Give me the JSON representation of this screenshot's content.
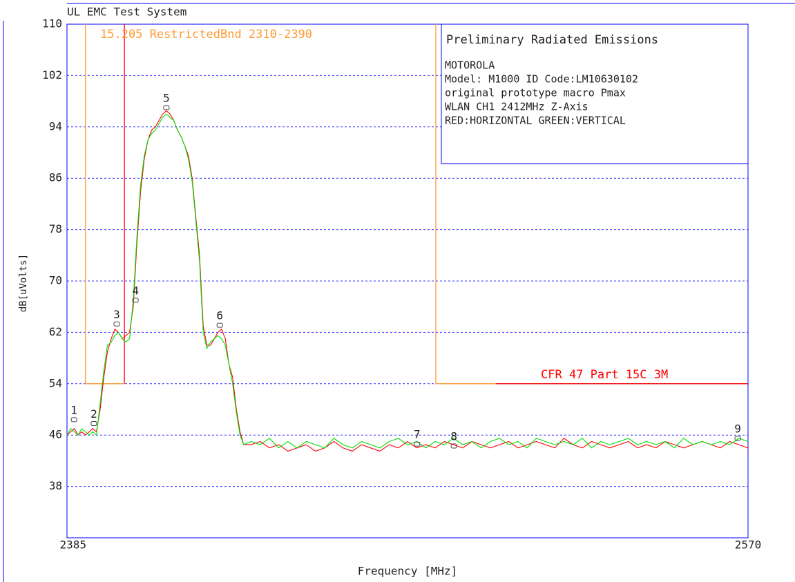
{
  "chart_data": {
    "type": "line",
    "title": "UL EMC Test System",
    "xlabel": "Frequency [MHz]",
    "ylabel": "dB[uVolts]",
    "xlim": [
      2385,
      2570
    ],
    "ylim": [
      30,
      110
    ],
    "xticks": [
      2385,
      2570
    ],
    "yticks": [
      38,
      46,
      54,
      62,
      70,
      78,
      86,
      94,
      102,
      110
    ],
    "grid": true,
    "info_box": {
      "title": "Preliminary Radiated Emissions",
      "lines": [
        "MOTOROLA",
        "Model: M1000  ID Code:LM10630102",
        "original prototype macro Pmax",
        "WLAN CH1 2412MHz Z-Axis",
        "RED:HORIZONTAL  GREEN:VERTICAL"
      ]
    },
    "annotations": [
      {
        "text": "15.205 RestrictedBnd 2310-2390",
        "color": "#ff9933"
      },
      {
        "text": "CFR 47 Part 15C 3M",
        "color": "#ff0000"
      }
    ],
    "x": [
      2385,
      2386,
      2387,
      2388,
      2389,
      2390,
      2391,
      2392,
      2393,
      2394,
      2395,
      2396,
      2397,
      2398,
      2399,
      2400,
      2401,
      2402,
      2403,
      2404,
      2405,
      2406,
      2407,
      2408,
      2409,
      2410,
      2411,
      2412,
      2413,
      2414,
      2415,
      2416,
      2417,
      2418,
      2419,
      2420,
      2421,
      2422,
      2423,
      2424,
      2425,
      2426,
      2427,
      2428,
      2429,
      2430,
      2431,
      2432,
      2433,
      2435,
      2437.5,
      2440,
      2442.5,
      2445,
      2447.5,
      2450,
      2452.5,
      2455,
      2457.5,
      2460,
      2462.5,
      2465,
      2467.5,
      2470,
      2472.5,
      2475,
      2477.5,
      2480,
      2482.5,
      2485,
      2487.5,
      2490,
      2492.5,
      2495,
      2497.5,
      2500,
      2502.5,
      2505,
      2507.5,
      2510,
      2512.5,
      2515,
      2517.5,
      2520,
      2522.5,
      2525,
      2527.5,
      2530,
      2532.5,
      2535,
      2537.5,
      2540,
      2542.5,
      2545,
      2547.5,
      2550,
      2552.5,
      2555,
      2557.5,
      2560,
      2562.5,
      2565,
      2567.5,
      2570
    ],
    "series": [
      {
        "color": "#ff0000",
        "values": [
          46,
          46.5,
          47,
          46,
          46.5,
          46,
          46.5,
          47,
          46.5,
          50,
          55,
          59,
          61,
          62.5,
          62,
          61,
          61.5,
          62,
          66,
          76,
          84,
          89,
          92,
          93.5,
          94,
          95,
          96,
          96.5,
          96,
          95,
          93.5,
          92.5,
          91,
          89.5,
          86,
          80,
          74,
          63,
          60,
          60,
          61,
          62,
          62.5,
          61,
          57,
          55,
          50,
          46.5,
          44.5,
          44.5,
          45,
          44,
          44.5,
          43.5,
          44,
          44.5,
          43.5,
          44,
          45,
          44,
          43.5,
          44.5,
          44,
          43.5,
          44.5,
          44,
          45,
          44,
          44.5,
          44,
          45,
          44.5,
          44,
          45,
          44.5,
          44,
          44.5,
          45,
          44,
          44.5,
          45,
          44.5,
          44,
          45.5,
          44.5,
          44,
          45,
          44.5,
          44,
          44.5,
          45,
          44,
          44.5,
          44,
          45,
          44.5,
          44,
          44.5,
          45,
          44.5,
          44,
          45,
          44.5,
          44
        ]
      },
      {
        "color": "#00dd00",
        "values": [
          46,
          47,
          46.5,
          46,
          47,
          46.5,
          46,
          46.5,
          46,
          51,
          56,
          60,
          60.5,
          61.5,
          62,
          61,
          60.5,
          61,
          67,
          77,
          85,
          89.5,
          92,
          93,
          93.5,
          94.5,
          95.5,
          96,
          95.5,
          95,
          93.5,
          92.5,
          91,
          89,
          85.5,
          79.5,
          73,
          62,
          59.5,
          60.5,
          61,
          61.5,
          61,
          60,
          57,
          54,
          49.5,
          46,
          44.5,
          45,
          44.5,
          45.5,
          44,
          45,
          44,
          45,
          44.5,
          44,
          45.5,
          44.5,
          44,
          45,
          44.5,
          44,
          45,
          45.5,
          44.5,
          45,
          44,
          45,
          44.5,
          45.5,
          44.5,
          45,
          44,
          45,
          45.5,
          44.5,
          45,
          44,
          45.5,
          45,
          44.5,
          45,
          44.5,
          45.5,
          44,
          45,
          44.5,
          45,
          45.5,
          44.5,
          45,
          44.5,
          45,
          44,
          45.5,
          44.5,
          45,
          44.5,
          45,
          44.5,
          45.5,
          45
        ]
      }
    ],
    "limit_lines": [
      {
        "color": "#ff9933",
        "x": [
          2390,
          2390,
          2400.6,
          null,
          2485.2,
          2485.2,
          2501.5
        ],
        "values": [
          110,
          54,
          54,
          null,
          110,
          54,
          54
        ]
      },
      {
        "color": "#ff0000",
        "x": [
          2400.6,
          2400.6,
          null,
          2501.5,
          2570
        ],
        "values": [
          110,
          54,
          null,
          54,
          54
        ]
      }
    ],
    "markers": [
      {
        "label": "1",
        "x": 2386.9,
        "y": 48.4
      },
      {
        "label": "2",
        "x": 2392.3,
        "y": 47.8
      },
      {
        "label": "3",
        "x": 2398.5,
        "y": 63.3
      },
      {
        "label": "4",
        "x": 2403.6,
        "y": 67
      },
      {
        "label": "5",
        "x": 2412,
        "y": 97
      },
      {
        "label": "6",
        "x": 2426.5,
        "y": 63.1
      },
      {
        "label": "7",
        "x": 2480.1,
        "y": 44.6
      },
      {
        "label": "8",
        "x": 2490.1,
        "y": 44.3
      },
      {
        "label": "9",
        "x": 2567.2,
        "y": 45.5
      }
    ]
  }
}
